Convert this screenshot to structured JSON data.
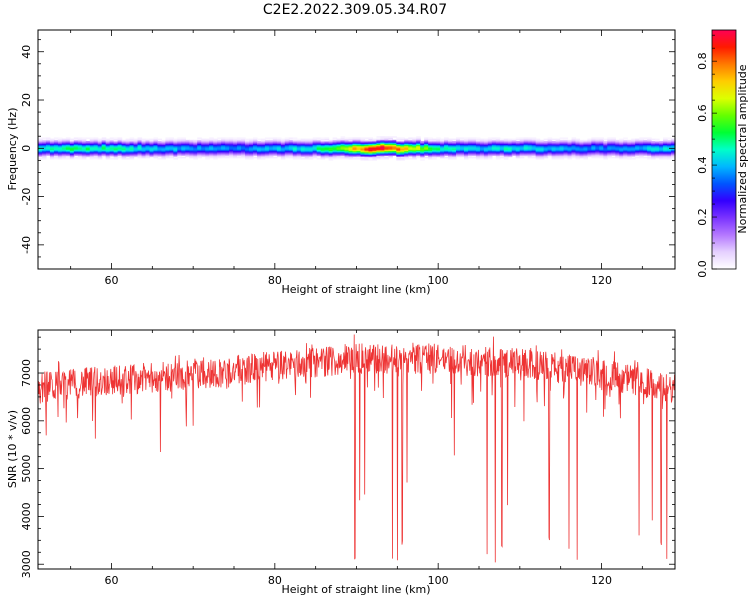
{
  "figure": {
    "title": "C2E2.2022.309.05.34.R07"
  },
  "chart_data": [
    {
      "type": "heatmap",
      "title": "C2E2.2022.309.05.34.R07",
      "xlabel": "Height of straight line (km)",
      "ylabel": "Frequency (Hz)",
      "xlim": [
        51,
        129
      ],
      "ylim": [
        -50,
        49
      ],
      "x_ticks": [
        60,
        80,
        100,
        120
      ],
      "y_ticks": [
        -40,
        -20,
        0,
        20,
        40
      ],
      "colorbar": {
        "label": "Normalized spectral amplitude",
        "range": [
          0,
          0.92
        ],
        "ticks": [
          0.0,
          0.2,
          0.4,
          0.6,
          0.8
        ],
        "colormap": [
          "#ffffff",
          "#e5d0ff",
          "#b477ff",
          "#7a33ff",
          "#3300ff",
          "#0055ff",
          "#00b8ff",
          "#00ffc8",
          "#00ff33",
          "#66ff00",
          "#ddff00",
          "#ffcc00",
          "#ff7a00",
          "#ff1a00",
          "#ff0055"
        ]
      },
      "band": {
        "center_frequency": 0,
        "half_width_hz": 3,
        "amplitude_profile": [
          {
            "h": 51,
            "a": 0.45
          },
          {
            "h": 55,
            "a": 0.5
          },
          {
            "h": 60,
            "a": 0.48
          },
          {
            "h": 65,
            "a": 0.42
          },
          {
            "h": 70,
            "a": 0.38
          },
          {
            "h": 75,
            "a": 0.36
          },
          {
            "h": 80,
            "a": 0.4
          },
          {
            "h": 84,
            "a": 0.45
          },
          {
            "h": 88,
            "a": 0.55
          },
          {
            "h": 91,
            "a": 0.85
          },
          {
            "h": 93,
            "a": 0.92
          },
          {
            "h": 96,
            "a": 0.75
          },
          {
            "h": 100,
            "a": 0.48
          },
          {
            "h": 105,
            "a": 0.4
          },
          {
            "h": 108,
            "a": 0.45
          },
          {
            "h": 112,
            "a": 0.42
          },
          {
            "h": 116,
            "a": 0.38
          },
          {
            "h": 120,
            "a": 0.36
          },
          {
            "h": 125,
            "a": 0.4
          },
          {
            "h": 129,
            "a": 0.45
          }
        ]
      }
    },
    {
      "type": "line",
      "xlabel": "Height of straight line (km)",
      "ylabel": "SNR (10 * v/v)",
      "xlim": [
        51,
        129
      ],
      "ylim": [
        2900,
        7900
      ],
      "x_ticks": [
        60,
        80,
        100,
        120
      ],
      "y_ticks": [
        3000,
        4000,
        5000,
        6000,
        7000
      ],
      "color": "#ee3333",
      "baseline": [
        {
          "h": 51,
          "v": 6700
        },
        {
          "h": 60,
          "v": 6850
        },
        {
          "h": 70,
          "v": 6950
        },
        {
          "h": 80,
          "v": 7150
        },
        {
          "h": 90,
          "v": 7300
        },
        {
          "h": 100,
          "v": 7300
        },
        {
          "h": 110,
          "v": 7200
        },
        {
          "h": 120,
          "v": 7000
        },
        {
          "h": 129,
          "v": 6650
        }
      ],
      "noise_amplitude": 400,
      "dips": [
        {
          "h": 89.8,
          "v": 3000
        },
        {
          "h": 90.4,
          "v": 4300
        },
        {
          "h": 91.0,
          "v": 4400
        },
        {
          "h": 94.4,
          "v": 3000
        },
        {
          "h": 95.0,
          "v": 2950
        },
        {
          "h": 95.6,
          "v": 3400
        },
        {
          "h": 96.2,
          "v": 4700
        },
        {
          "h": 102.0,
          "v": 5200
        },
        {
          "h": 106.0,
          "v": 3100
        },
        {
          "h": 107.0,
          "v": 3000
        },
        {
          "h": 107.8,
          "v": 3300
        },
        {
          "h": 108.5,
          "v": 4100
        },
        {
          "h": 113.6,
          "v": 3500
        },
        {
          "h": 116.0,
          "v": 3300
        },
        {
          "h": 117.0,
          "v": 3000
        },
        {
          "h": 124.6,
          "v": 3500
        },
        {
          "h": 126.2,
          "v": 3900
        },
        {
          "h": 127.3,
          "v": 3400
        },
        {
          "h": 128.0,
          "v": 3000
        },
        {
          "h": 70.0,
          "v": 5800
        },
        {
          "h": 66.0,
          "v": 5200
        },
        {
          "h": 58.0,
          "v": 5500
        },
        {
          "h": 52.0,
          "v": 5600
        }
      ]
    }
  ]
}
